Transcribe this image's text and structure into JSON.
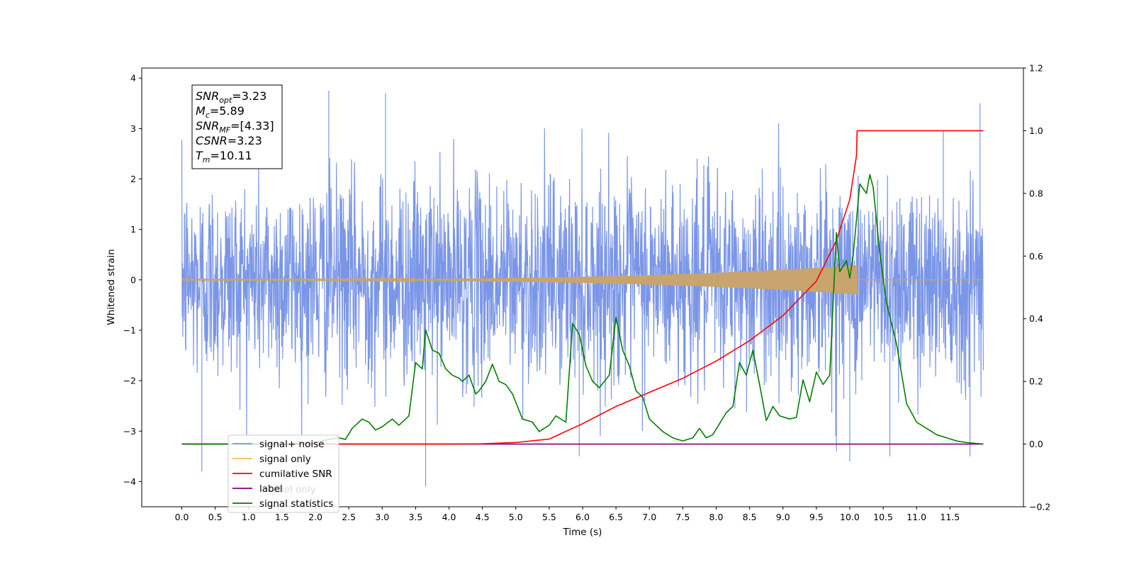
{
  "chart_data": {
    "type": "line",
    "xlabel": "Time (s)",
    "ylabel": "Whitened strain",
    "xlim": [
      -0.6,
      12.6
    ],
    "ylim": [
      -4.5,
      4.2
    ],
    "ylim_right": [
      -0.2,
      1.2
    ],
    "x_ticks": [
      "0.0",
      "0.5",
      "1.0",
      "1.5",
      "2.0",
      "2.5",
      "3.0",
      "3.5",
      "4.0",
      "4.5",
      "5.0",
      "5.5",
      "6.0",
      "6.5",
      "7.0",
      "7.5",
      "8.0",
      "8.5",
      "9.0",
      "9.5",
      "10.0",
      "10.5",
      "11.0",
      "11.5"
    ],
    "y_ticks": [
      "−4",
      "−3",
      "−2",
      "−1",
      "0",
      "1",
      "2",
      "3",
      "4"
    ],
    "y_ticks_right": [
      "−0.2",
      "0.0",
      "0.2",
      "0.4",
      "0.6",
      "0.8",
      "1.0",
      "1.2"
    ],
    "colors": {
      "noise": "#7b96e8",
      "signal": "#f9b855",
      "signal_fill": "#c8a46e",
      "snr": "#ff0000",
      "label": "#800080",
      "stat": "#008000"
    },
    "annotation": {
      "lines": [
        {
          "base": "SNR",
          "sub": "opt",
          "value": "=3.23"
        },
        {
          "base": "M",
          "sub": "c",
          "value": "=5.89"
        },
        {
          "base": "SNR",
          "sub": "MF",
          "value": "=[4.33]"
        },
        {
          "base": "CSNR",
          "sub": "",
          "value": "=3.23"
        },
        {
          "base": "T",
          "sub": "m",
          "value": "=10.11"
        }
      ]
    },
    "legend": {
      "placement": "lower-left",
      "entries": [
        {
          "label": "signal+ noise",
          "color": "#7b96e8"
        },
        {
          "label": "signal only",
          "color": "#f9b855"
        },
        {
          "label": "cumilative SNR",
          "color": "#ff0000"
        },
        {
          "label": "label",
          "color": "#800080"
        },
        {
          "label": "signal statistics",
          "color": "#008000"
        }
      ],
      "hidden_text": "label only"
    },
    "series": [
      {
        "name": "signal+ noise",
        "axis": "left",
        "t_range": [
          0.0,
          12.0
        ],
        "envelope": [
          2.0,
          -2.0
        ],
        "peaks": [
          [
            0.3,
            -3.8
          ],
          [
            2.2,
            3.75
          ],
          [
            3.05,
            3.7
          ],
          [
            3.65,
            -4.1
          ],
          [
            5.95,
            -3.5
          ],
          [
            9.8,
            -3.4
          ],
          [
            10.0,
            -3.6
          ],
          [
            10.6,
            -3.5
          ],
          [
            11.4,
            2.95
          ],
          [
            11.8,
            -3.5
          ],
          [
            11.95,
            3.5
          ]
        ]
      },
      {
        "name": "signal only",
        "axis": "left",
        "t_range": [
          0.0,
          10.11
        ],
        "amplitude_at_merger": 0.28
      },
      {
        "name": "cumilative SNR",
        "axis": "right",
        "points": [
          [
            0,
            0
          ],
          [
            4,
            0
          ],
          [
            4.5,
            0.001
          ],
          [
            5,
            0.005
          ],
          [
            5.5,
            0.016
          ],
          [
            6,
            0.065
          ],
          [
            6.5,
            0.12
          ],
          [
            7,
            0.165
          ],
          [
            7.5,
            0.21
          ],
          [
            8,
            0.265
          ],
          [
            8.5,
            0.33
          ],
          [
            9,
            0.41
          ],
          [
            9.5,
            0.52
          ],
          [
            9.8,
            0.65
          ],
          [
            10,
            0.78
          ],
          [
            10.1,
            0.92
          ],
          [
            10.11,
            1.0
          ],
          [
            12,
            1.0
          ]
        ]
      },
      {
        "name": "label",
        "axis": "right",
        "points": [
          [
            0,
            0
          ],
          [
            12,
            0
          ]
        ]
      },
      {
        "name": "signal statistics",
        "axis": "right",
        "points": [
          [
            0,
            0
          ],
          [
            1.5,
            0
          ],
          [
            2.0,
            0.005
          ],
          [
            2.2,
            0.015
          ],
          [
            2.35,
            0.02
          ],
          [
            2.45,
            0.015
          ],
          [
            2.55,
            0.05
          ],
          [
            2.7,
            0.08
          ],
          [
            2.8,
            0.07
          ],
          [
            2.9,
            0.045
          ],
          [
            3.0,
            0.055
          ],
          [
            3.15,
            0.08
          ],
          [
            3.25,
            0.06
          ],
          [
            3.4,
            0.09
          ],
          [
            3.5,
            0.26
          ],
          [
            3.6,
            0.24
          ],
          [
            3.65,
            0.365
          ],
          [
            3.75,
            0.3
          ],
          [
            3.85,
            0.29
          ],
          [
            3.95,
            0.24
          ],
          [
            4.05,
            0.22
          ],
          [
            4.15,
            0.21
          ],
          [
            4.2,
            0.2
          ],
          [
            4.3,
            0.22
          ],
          [
            4.4,
            0.16
          ],
          [
            4.45,
            0.17
          ],
          [
            4.55,
            0.2
          ],
          [
            4.65,
            0.255
          ],
          [
            4.75,
            0.2
          ],
          [
            4.85,
            0.19
          ],
          [
            4.95,
            0.16
          ],
          [
            5.1,
            0.08
          ],
          [
            5.25,
            0.07
          ],
          [
            5.35,
            0.04
          ],
          [
            5.5,
            0.06
          ],
          [
            5.6,
            0.09
          ],
          [
            5.75,
            0.07
          ],
          [
            5.85,
            0.385
          ],
          [
            5.95,
            0.35
          ],
          [
            6.05,
            0.25
          ],
          [
            6.15,
            0.2
          ],
          [
            6.25,
            0.18
          ],
          [
            6.4,
            0.22
          ],
          [
            6.5,
            0.405
          ],
          [
            6.6,
            0.3
          ],
          [
            6.7,
            0.25
          ],
          [
            6.8,
            0.17
          ],
          [
            6.9,
            0.15
          ],
          [
            7.0,
            0.08
          ],
          [
            7.1,
            0.06
          ],
          [
            7.2,
            0.04
          ],
          [
            7.35,
            0.02
          ],
          [
            7.5,
            0.01
          ],
          [
            7.65,
            0.02
          ],
          [
            7.75,
            0.05
          ],
          [
            7.85,
            0.02
          ],
          [
            7.95,
            0.03
          ],
          [
            8.05,
            0.065
          ],
          [
            8.15,
            0.1
          ],
          [
            8.25,
            0.12
          ],
          [
            8.35,
            0.26
          ],
          [
            8.45,
            0.22
          ],
          [
            8.55,
            0.3
          ],
          [
            8.65,
            0.19
          ],
          [
            8.75,
            0.075
          ],
          [
            8.85,
            0.12
          ],
          [
            8.95,
            0.09
          ],
          [
            9.1,
            0.08
          ],
          [
            9.2,
            0.085
          ],
          [
            9.3,
            0.205
          ],
          [
            9.4,
            0.135
          ],
          [
            9.5,
            0.23
          ],
          [
            9.6,
            0.19
          ],
          [
            9.7,
            0.22
          ],
          [
            9.8,
            0.675
          ],
          [
            9.85,
            0.55
          ],
          [
            9.95,
            0.585
          ],
          [
            10.0,
            0.53
          ],
          [
            10.05,
            0.6
          ],
          [
            10.15,
            0.83
          ],
          [
            10.25,
            0.8
          ],
          [
            10.3,
            0.86
          ],
          [
            10.35,
            0.82
          ],
          [
            10.45,
            0.61
          ],
          [
            10.55,
            0.45
          ],
          [
            10.7,
            0.32
          ],
          [
            10.85,
            0.13
          ],
          [
            11.0,
            0.07
          ],
          [
            11.15,
            0.05
          ],
          [
            11.3,
            0.03
          ],
          [
            11.45,
            0.02
          ],
          [
            11.6,
            0.01
          ],
          [
            11.75,
            0.005
          ],
          [
            12.0,
            0.0
          ]
        ]
      }
    ]
  }
}
